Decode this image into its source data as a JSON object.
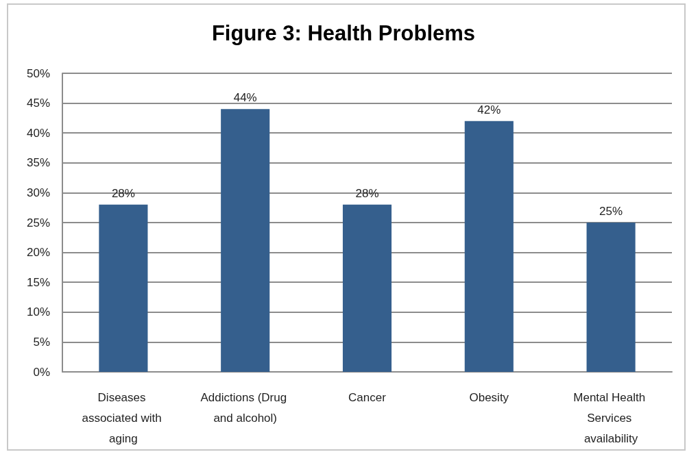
{
  "chart_data": {
    "type": "bar",
    "title": "Figure 3: Health Problems",
    "categories": [
      "Diseases associated with aging",
      "Addictions (Drug and alcohol)",
      "Cancer",
      "Obesity",
      "Mental Health Services availability"
    ],
    "values": [
      28,
      44,
      28,
      42,
      25
    ],
    "value_labels": [
      "28%",
      "44%",
      "28%",
      "42%",
      "25%"
    ],
    "color": "#355f8d",
    "ylim": [
      0,
      50
    ],
    "yticks": [
      {
        "value": 0,
        "label": "0%"
      },
      {
        "value": 5,
        "label": "5%"
      },
      {
        "value": 10,
        "label": "10%"
      },
      {
        "value": 15,
        "label": "15%"
      },
      {
        "value": 20,
        "label": "20%"
      },
      {
        "value": 25,
        "label": "25%"
      },
      {
        "value": 30,
        "label": "30%"
      },
      {
        "value": 35,
        "label": "35%"
      },
      {
        "value": 40,
        "label": "40%"
      },
      {
        "value": 45,
        "label": "45%"
      },
      {
        "value": 50,
        "label": "50%"
      }
    ],
    "grid": "y"
  }
}
